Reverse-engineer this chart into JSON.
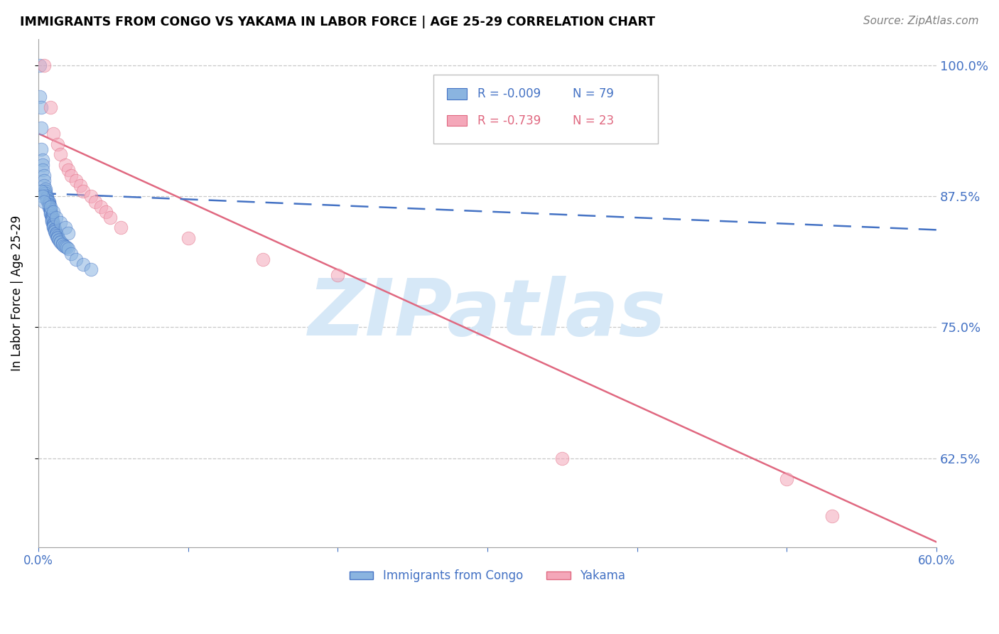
{
  "title": "IMMIGRANTS FROM CONGO VS YAKAMA IN LABOR FORCE | AGE 25-29 CORRELATION CHART",
  "source": "Source: ZipAtlas.com",
  "ylabel": "In Labor Force | Age 25-29",
  "xlim": [
    0.0,
    0.6
  ],
  "ylim": [
    0.54,
    1.025
  ],
  "yticks": [
    0.625,
    0.75,
    0.875,
    1.0
  ],
  "ytick_labels": [
    "62.5%",
    "75.0%",
    "87.5%",
    "100.0%"
  ],
  "xticks": [
    0.0,
    0.1,
    0.2,
    0.3,
    0.4,
    0.5,
    0.6
  ],
  "legend_label1": "Immigrants from Congo",
  "legend_label2": "Yakama",
  "R1": -0.009,
  "N1": 79,
  "R2": -0.739,
  "N2": 23,
  "color_blue": "#8ab4e0",
  "color_pink": "#f4a7b9",
  "color_blue_line": "#4472c4",
  "color_pink_line": "#e06880",
  "color_axis": "#4472c4",
  "watermark": "ZIPatlas",
  "watermark_color": "#d6e8f7",
  "congo_x": [
    0.001,
    0.001,
    0.002,
    0.002,
    0.002,
    0.003,
    0.003,
    0.003,
    0.004,
    0.004,
    0.004,
    0.005,
    0.005,
    0.005,
    0.005,
    0.006,
    0.006,
    0.006,
    0.006,
    0.006,
    0.007,
    0.007,
    0.007,
    0.007,
    0.007,
    0.007,
    0.007,
    0.008,
    0.008,
    0.008,
    0.008,
    0.008,
    0.008,
    0.009,
    0.009,
    0.009,
    0.009,
    0.009,
    0.009,
    0.009,
    0.01,
    0.01,
    0.01,
    0.01,
    0.01,
    0.01,
    0.011,
    0.011,
    0.011,
    0.011,
    0.012,
    0.012,
    0.012,
    0.013,
    0.013,
    0.013,
    0.014,
    0.014,
    0.015,
    0.015,
    0.016,
    0.016,
    0.017,
    0.018,
    0.019,
    0.02,
    0.022,
    0.025,
    0.03,
    0.035,
    0.002,
    0.003,
    0.004,
    0.008,
    0.01,
    0.012,
    0.015,
    0.018,
    0.02
  ],
  "congo_y": [
    1.0,
    0.97,
    0.96,
    0.94,
    0.92,
    0.91,
    0.905,
    0.9,
    0.895,
    0.89,
    0.885,
    0.882,
    0.88,
    0.878,
    0.876,
    0.875,
    0.874,
    0.873,
    0.872,
    0.871,
    0.87,
    0.869,
    0.868,
    0.867,
    0.866,
    0.865,
    0.864,
    0.863,
    0.862,
    0.861,
    0.86,
    0.859,
    0.858,
    0.857,
    0.856,
    0.855,
    0.854,
    0.853,
    0.852,
    0.851,
    0.85,
    0.849,
    0.848,
    0.847,
    0.846,
    0.845,
    0.844,
    0.843,
    0.842,
    0.841,
    0.84,
    0.839,
    0.838,
    0.837,
    0.836,
    0.835,
    0.834,
    0.833,
    0.832,
    0.831,
    0.83,
    0.829,
    0.828,
    0.827,
    0.826,
    0.825,
    0.82,
    0.815,
    0.81,
    0.805,
    0.88,
    0.875,
    0.87,
    0.865,
    0.86,
    0.855,
    0.85,
    0.845,
    0.84
  ],
  "yakama_x": [
    0.004,
    0.008,
    0.01,
    0.013,
    0.015,
    0.018,
    0.02,
    0.022,
    0.025,
    0.028,
    0.03,
    0.035,
    0.038,
    0.042,
    0.045,
    0.048,
    0.055,
    0.1,
    0.15,
    0.2,
    0.35,
    0.5,
    0.53
  ],
  "yakama_y": [
    1.0,
    0.96,
    0.935,
    0.925,
    0.915,
    0.905,
    0.9,
    0.895,
    0.89,
    0.885,
    0.88,
    0.875,
    0.87,
    0.865,
    0.86,
    0.855,
    0.845,
    0.835,
    0.815,
    0.8,
    0.625,
    0.605,
    0.57
  ],
  "blue_line_x": [
    0.0,
    0.6
  ],
  "blue_line_y": [
    0.878,
    0.843
  ],
  "pink_line_x": [
    0.0,
    0.6
  ],
  "pink_line_y": [
    0.935,
    0.545
  ]
}
